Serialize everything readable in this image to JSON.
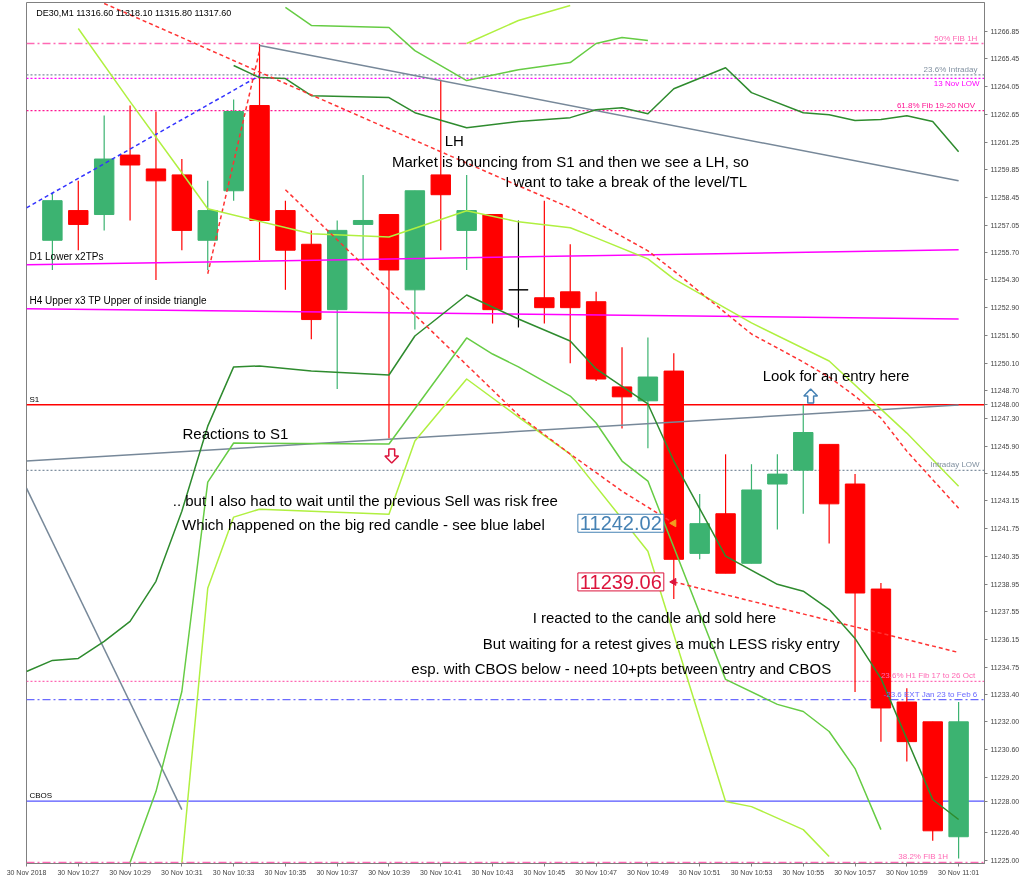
{
  "chart_data": {
    "type": "candlestick",
    "title": "DE30,M1  11316.60 11318.10 11315.80 11317.60",
    "x": [
      "2018-11-30T10:26",
      "2018-11-30T10:27",
      "2018-11-30T10:28",
      "2018-11-30T10:29",
      "2018-11-30T10:30",
      "2018-11-30T10:31",
      "2018-11-30T10:32",
      "2018-11-30T10:33",
      "2018-11-30T10:34",
      "2018-11-30T10:35",
      "2018-11-30T10:36",
      "2018-11-30T10:37",
      "2018-11-30T10:38",
      "2018-11-30T10:39",
      "2018-11-30T10:40",
      "2018-11-30T10:41",
      "2018-11-30T10:42",
      "2018-11-30T10:43",
      "2018-11-30T10:44",
      "2018-11-30T10:45",
      "2018-11-30T10:46",
      "2018-11-30T10:47",
      "2018-11-30T10:48",
      "2018-11-30T10:49",
      "2018-11-30T10:50",
      "2018-11-30T10:51",
      "2018-11-30T10:52",
      "2018-11-30T10:53",
      "2018-11-30T10:54",
      "2018-11-30T10:55",
      "2018-11-30T10:56",
      "2018-11-30T10:57",
      "2018-11-30T10:58",
      "2018-11-30T10:59",
      "2018-11-30T11:00",
      "2018-11-30T11:01"
    ],
    "ohlc": [
      [
        11256.3,
        11258.7,
        11254.8,
        11258.3
      ],
      [
        11257.8,
        11259.3,
        11255.8,
        11257.1
      ],
      [
        11257.6,
        11262.6,
        11256.8,
        11260.4
      ],
      [
        11260.6,
        11263.1,
        11257.3,
        11260.1
      ],
      [
        11259.9,
        11262.8,
        11254.3,
        11259.3
      ],
      [
        11259.6,
        11260.4,
        11255.8,
        11256.8
      ],
      [
        11256.3,
        11259.3,
        11254.8,
        11257.8
      ],
      [
        11258.8,
        11263.4,
        11258.3,
        11262.8
      ],
      [
        11263.1,
        11266.2,
        11255.3,
        11257.3
      ],
      [
        11257.8,
        11258.3,
        11253.8,
        11255.8
      ],
      [
        11256.1,
        11256.8,
        11251.3,
        11252.3
      ],
      [
        11252.8,
        11257.3,
        11248.8,
        11256.8
      ],
      [
        11257.1,
        11259.6,
        11255.3,
        11257.3
      ],
      [
        11257.6,
        11257.6,
        11246.3,
        11254.8
      ],
      [
        11253.8,
        11258.8,
        11251.8,
        11258.8
      ],
      [
        11259.6,
        11264.4,
        11255.8,
        11258.6
      ],
      [
        11256.8,
        11259.6,
        11254.8,
        11257.8
      ],
      [
        11257.6,
        11257.6,
        11252.1,
        11252.8
      ],
      [
        11253.8,
        11257.3,
        11251.9,
        11253.8
      ],
      [
        11253.4,
        11258.3,
        11252.1,
        11252.9
      ],
      [
        11253.7,
        11256.1,
        11250.1,
        11252.9
      ],
      [
        11253.2,
        11253.7,
        11249.2,
        11249.3
      ],
      [
        11248.9,
        11250.9,
        11246.8,
        11248.4
      ],
      [
        11248.2,
        11251.4,
        11245.8,
        11249.4
      ],
      [
        11249.7,
        11250.6,
        11238.2,
        11240.2
      ],
      [
        11240.5,
        11243.5,
        11240.2,
        11242.0
      ],
      [
        11242.5,
        11245.5,
        11239.5,
        11239.5
      ],
      [
        11240.0,
        11245.0,
        11240.0,
        11243.7
      ],
      [
        11244.0,
        11245.5,
        11241.7,
        11244.5
      ],
      [
        11244.7,
        11248.0,
        11242.5,
        11246.6
      ],
      [
        11246.0,
        11246.0,
        11241.0,
        11243.0
      ],
      [
        11244.0,
        11244.5,
        11233.5,
        11238.5
      ],
      [
        11238.7,
        11239.0,
        11231.0,
        11232.7
      ],
      [
        11233.0,
        11233.7,
        11230.0,
        11231.0
      ],
      [
        11232.0,
        11232.0,
        11226.0,
        11226.5
      ],
      [
        11226.2,
        11233.0,
        11225.1,
        11232.0
      ]
    ],
    "colors": [
      "#3cb371",
      "#ff0000",
      "#3cb371",
      "#ff0000",
      "#ff0000",
      "#ff0000",
      "#3cb371",
      "#3cb371",
      "#ff0000",
      "#ff0000",
      "#ff0000",
      "#3cb371",
      "#3cb371",
      "#ff0000",
      "#3cb371",
      "#ff0000",
      "#3cb371",
      "#ff0000",
      "#000000",
      "#ff0000",
      "#ff0000",
      "#ff0000",
      "#ff0000",
      "#3cb371",
      "#ff0000",
      "#3cb371",
      "#ff0000",
      "#3cb371",
      "#3cb371",
      "#3cb371",
      "#ff0000",
      "#ff0000",
      "#ff0000",
      "#ff0000",
      "#ff0000",
      "#3cb371"
    ],
    "xlim": [
      "2018-11-30T10:25",
      "2018-11-30T11:02"
    ],
    "ylim": [
      11224.85,
      11268.3
    ],
    "xticks": [
      {
        "value": "2018-11-30T10:25",
        "label": "30 Nov 2018"
      },
      {
        "value": "2018-11-30T10:27",
        "label": "30 Nov 10:27"
      },
      {
        "value": "2018-11-30T10:29",
        "label": "30 Nov 10:29"
      },
      {
        "value": "2018-11-30T10:31",
        "label": "30 Nov 10:31"
      },
      {
        "value": "2018-11-30T10:33",
        "label": "30 Nov 10:33"
      },
      {
        "value": "2018-11-30T10:35",
        "label": "30 Nov 10:35"
      },
      {
        "value": "2018-11-30T10:37",
        "label": "30 Nov 10:37"
      },
      {
        "value": "2018-11-30T10:39",
        "label": "30 Nov 10:39"
      },
      {
        "value": "2018-11-30T10:41",
        "label": "30 Nov 10:41"
      },
      {
        "value": "2018-11-30T10:43",
        "label": "30 Nov 10:43"
      },
      {
        "value": "2018-11-30T10:45",
        "label": "30 Nov 10:45"
      },
      {
        "value": "2018-11-30T10:47",
        "label": "30 Nov 10:47"
      },
      {
        "value": "2018-11-30T10:49",
        "label": "30 Nov 10:49"
      },
      {
        "value": "2018-11-30T10:51",
        "label": "30 Nov 10:51"
      },
      {
        "value": "2018-11-30T10:53",
        "label": "30 Nov 10:53"
      },
      {
        "value": "2018-11-30T10:55",
        "label": "30 Nov 10:55"
      },
      {
        "value": "2018-11-30T10:57",
        "label": "30 Nov 10:57"
      },
      {
        "value": "2018-11-30T10:59",
        "label": "30 Nov 10:59"
      },
      {
        "value": "2018-11-30T11:01",
        "label": "30 Nov 11:01"
      }
    ],
    "yticks": [
      {
        "value": 11266.85,
        "label": "11266.85"
      },
      {
        "value": 11265.45,
        "label": "11265.45"
      },
      {
        "value": 11264.05,
        "label": "11264.05"
      },
      {
        "value": 11262.65,
        "label": "11262.65"
      },
      {
        "value": 11261.25,
        "label": "11261.25"
      },
      {
        "value": 11259.85,
        "label": "11259.85"
      },
      {
        "value": 11258.45,
        "label": "11258.45"
      },
      {
        "value": 11257.05,
        "label": "11257.05"
      },
      {
        "value": 11255.7,
        "label": "11255.70"
      },
      {
        "value": 11254.3,
        "label": "11254.30"
      },
      {
        "value": 11252.9,
        "label": "11252.90"
      },
      {
        "value": 11251.5,
        "label": "11251.50"
      },
      {
        "value": 11250.1,
        "label": "11250.10"
      },
      {
        "value": 11248.7,
        "label": "11248.70"
      },
      {
        "value": 11248.0,
        "label": "11248.00"
      },
      {
        "value": 11247.3,
        "label": "11247.30"
      },
      {
        "value": 11245.9,
        "label": "11245.90"
      },
      {
        "value": 11244.55,
        "label": "11244.55"
      },
      {
        "value": 11243.15,
        "label": "11243.15"
      },
      {
        "value": 11241.75,
        "label": "11241.75"
      },
      {
        "value": 11240.35,
        "label": "11240.35"
      },
      {
        "value": 11238.95,
        "label": "11238.95"
      },
      {
        "value": 11237.55,
        "label": "11237.55"
      },
      {
        "value": 11236.15,
        "label": "11236.15"
      },
      {
        "value": 11234.75,
        "label": "11234.75"
      },
      {
        "value": 11233.4,
        "label": "11233.40"
      },
      {
        "value": 11232.0,
        "label": "11232.00"
      },
      {
        "value": 11230.6,
        "label": "11230.60"
      },
      {
        "value": 11229.2,
        "label": "11229.20"
      },
      {
        "value": 11228.0,
        "label": "11228.00"
      },
      {
        "value": 11226.4,
        "label": "11226.40"
      },
      {
        "value": 11225.0,
        "label": "11225.00"
      }
    ],
    "grid": false,
    "ref_lines": [
      {
        "axis": "y",
        "value": 11266.23,
        "label": "50%  FIB 1H",
        "color": "#ff69b4",
        "line_style": "dashdot"
      },
      {
        "axis": "y",
        "value": 11264.65,
        "label": "23.6%  Intraday",
        "color": "#8090a0",
        "line_style": "dotted"
      },
      {
        "axis": "y",
        "value": 11264.47,
        "label": "13 Nov LOW",
        "color": "#ff00ff",
        "line_style": "dotted"
      },
      {
        "axis": "y",
        "value": 11262.84,
        "label": "61.8%  Fib 19-20  NOV",
        "color": "#ff1493",
        "line_style": "dotted"
      },
      {
        "axis": "y",
        "value": 11248.0,
        "label": "S1",
        "color": "#ff0000",
        "line_style": "solid"
      },
      {
        "axis": "y",
        "value": 11244.69,
        "label": "Intraday LOW",
        "color": "#8090a0",
        "line_style": "dotted"
      },
      {
        "axis": "y",
        "value": 11234.04,
        "label": "23.6%   H1 Fib 17 to 26 Oct",
        "color": "#ff69b4",
        "line_style": "dotted"
      },
      {
        "axis": "y",
        "value": 11233.12,
        "label": "-23.6  EXT Jan 23 to Feb 6",
        "color": "#6a6aff",
        "line_style": "dashdot"
      },
      {
        "axis": "y",
        "value": 11228.0,
        "label": "CBOS",
        "color": "#5555ff",
        "line_style": "solid"
      },
      {
        "axis": "y",
        "value": 11224.91,
        "label": "38.2%  FIB 1H",
        "color": "#ff69b4",
        "line_style": "dashdot"
      }
    ],
    "series": [
      {
        "type": "line",
        "name": "D1 Lower x2TPs",
        "color": "#ff00ff",
        "line_style": "solid",
        "x": [
          "2018-11-30T10:25",
          "2018-11-30T11:01"
        ],
        "values": [
          11255.06,
          11255.82
        ]
      },
      {
        "type": "line",
        "name": "H4 Upper  x3 TP Upper of inside triangle",
        "color": "#ff00ff",
        "line_style": "solid",
        "x": [
          "2018-11-30T10:25",
          "2018-11-30T11:01"
        ],
        "values": [
          11252.84,
          11252.33
        ]
      },
      {
        "type": "line",
        "color": "#778899",
        "line_style": "solid",
        "x": [
          "2018-11-30T10:34",
          "2018-11-30T11:01"
        ],
        "values": [
          11266.13,
          11259.3
        ]
      },
      {
        "type": "line",
        "color": "#778899",
        "line_style": "solid",
        "x": [
          "2018-11-30T10:25",
          "2018-11-30T11:01"
        ],
        "values": [
          11245.16,
          11247.99
        ]
      },
      {
        "type": "line",
        "color": "#778899",
        "line_style": "solid",
        "x": [
          "2018-11-30T10:25",
          "2018-11-30T10:31"
        ],
        "values": [
          11243.79,
          11227.57
        ]
      },
      {
        "type": "line",
        "color": "#3333ff",
        "line_style": "dashed",
        "x": [
          "2018-11-30T10:25",
          "2018-11-30T10:34"
        ],
        "values": [
          11257.94,
          11264.61
        ]
      },
      {
        "type": "line",
        "color": "#ff3333",
        "line_style": "dashed",
        "x": [
          "2018-11-30T10:32",
          "2018-11-30T10:34"
        ],
        "values": [
          11254.61,
          11265.87
        ]
      },
      {
        "type": "line",
        "color": "#2e8b2e",
        "line_style": "solid",
        "x": [
          "2018-11-30T10:33",
          "2018-11-30T10:34",
          "2018-11-30T10:35",
          "2018-11-30T10:36",
          "2018-11-30T10:39",
          "2018-11-30T10:40",
          "2018-11-30T10:42",
          "2018-11-30T10:44",
          "2018-11-30T10:46",
          "2018-11-30T10:47",
          "2018-11-30T10:48",
          "2018-11-30T10:49",
          "2018-11-30T10:50",
          "2018-11-30T10:52",
          "2018-11-30T10:53",
          "2018-11-30T10:55",
          "2018-11-30T10:56",
          "2018-11-30T10:57",
          "2018-11-30T10:58",
          "2018-11-30T10:59",
          "2018-11-30T11:00",
          "2018-11-30T11:01"
        ],
        "values": [
          11265.12,
          11264.51,
          11264.46,
          11263.6,
          11263.5,
          11262.74,
          11261.98,
          11262.29,
          11262.49,
          11262.89,
          11262.99,
          11262.69,
          11263.95,
          11265.01,
          11263.75,
          11262.74,
          11262.64,
          11262.34,
          11262.39,
          11262.59,
          11262.29,
          11260.77
        ]
      },
      {
        "type": "line",
        "color": "#66cc44",
        "line_style": "solid",
        "x": [
          "2018-11-30T10:35",
          "2018-11-30T10:36",
          "2018-11-30T10:39",
          "2018-11-30T10:40",
          "2018-11-30T10:42",
          "2018-11-30T10:44",
          "2018-11-30T10:46",
          "2018-11-30T10:47",
          "2018-11-30T10:48",
          "2018-11-30T10:49"
        ],
        "values": [
          11268.05,
          11267.14,
          11267.04,
          11265.87,
          11264.36,
          11264.91,
          11265.27,
          11266.23,
          11266.53,
          11266.38
        ]
      },
      {
        "type": "line",
        "color": "#b0f040",
        "line_style": "solid",
        "x": [
          "2018-11-30T10:42",
          "2018-11-30T10:44",
          "2018-11-30T10:46"
        ],
        "values": [
          11266.23,
          11267.39,
          11268.15
        ]
      },
      {
        "type": "line",
        "color": "#b0f040",
        "line_style": "solid",
        "x": [
          "2018-11-30T10:27",
          "2018-11-30T10:29",
          "2018-11-30T10:31",
          "2018-11-30T10:32",
          "2018-11-30T10:36",
          "2018-11-30T10:39",
          "2018-11-30T10:42",
          "2018-11-30T10:44",
          "2018-11-30T10:46",
          "2018-11-30T10:47",
          "2018-11-30T10:49",
          "2018-11-30T10:50",
          "2018-11-30T10:53",
          "2018-11-30T10:56",
          "2018-11-30T10:58",
          "2018-11-30T10:59",
          "2018-11-30T11:01"
        ],
        "values": [
          11266.99,
          11263.3,
          11259.71,
          11257.89,
          11256.63,
          11256.47,
          11257.79,
          11257.23,
          11256.93,
          11256.42,
          11255.36,
          11254.35,
          11252.13,
          11250.21,
          11247.78,
          11246.57,
          11243.89
        ]
      },
      {
        "type": "line",
        "color": "#2e8b2e",
        "line_style": "solid",
        "x": [
          "2018-11-30T10:25",
          "2018-11-30T10:26",
          "2018-11-30T10:27",
          "2018-11-30T10:28",
          "2018-11-30T10:29",
          "2018-11-30T10:30",
          "2018-11-30T10:31",
          "2018-11-30T10:32",
          "2018-11-30T10:33",
          "2018-11-30T10:34",
          "2018-11-30T10:36",
          "2018-11-30T10:39",
          "2018-11-30T10:40",
          "2018-11-30T10:42",
          "2018-11-30T10:44",
          "2018-11-30T10:46",
          "2018-11-30T10:47",
          "2018-11-30T10:49",
          "2018-11-30T10:50",
          "2018-11-30T10:52",
          "2018-11-30T10:54",
          "2018-11-30T10:55",
          "2018-11-30T10:56",
          "2018-11-30T10:57",
          "2018-11-30T10:58",
          "2018-11-30T11:00",
          "2018-11-30T11:01"
        ],
        "values": [
          11234.54,
          11235.1,
          11235.2,
          11236.06,
          11237.07,
          11239.09,
          11242.63,
          11246.92,
          11249.91,
          11249.96,
          11249.7,
          11249.5,
          11251.47,
          11253.54,
          11252.33,
          11251.22,
          11249.81,
          11248.04,
          11245.16,
          11240.36,
          11238.94,
          11238.59,
          11237.68,
          11236.21,
          11234.19,
          11228.08,
          11227.07
        ]
      },
      {
        "type": "line",
        "color": "#66cc44",
        "line_style": "solid",
        "x": [
          "2018-11-30T10:29",
          "2018-11-30T10:30",
          "2018-11-30T10:31",
          "2018-11-30T10:32",
          "2018-11-30T10:33",
          "2018-11-30T10:39",
          "2018-11-30T10:42",
          "2018-11-30T10:43",
          "2018-11-30T10:44",
          "2018-11-30T10:46",
          "2018-11-30T10:47",
          "2018-11-30T10:48",
          "2018-11-30T10:49",
          "2018-11-30T10:52",
          "2018-11-30T10:54",
          "2018-11-30T10:55",
          "2018-11-30T10:56",
          "2018-11-30T10:57",
          "2018-11-30T10:58"
        ],
        "values": [
          11224.9,
          11228.48,
          11233.53,
          11244.1,
          11246.07,
          11246.02,
          11251.37,
          11250.56,
          11249.91,
          11248.44,
          11247.08,
          11245.16,
          11244.15,
          11234.14,
          11232.88,
          11232.52,
          11231.51,
          11229.64,
          11226.56
        ]
      },
      {
        "type": "line",
        "color": "#b0f040",
        "line_style": "solid",
        "x": [
          "2018-11-30T10:31",
          "2018-11-30T10:32",
          "2018-11-30T10:33",
          "2018-11-30T10:34",
          "2018-11-30T10:39",
          "2018-11-30T10:40",
          "2018-11-30T10:42",
          "2018-11-30T10:44",
          "2018-11-30T10:46",
          "2018-11-30T10:49",
          "2018-11-30T10:52",
          "2018-11-30T10:53",
          "2018-11-30T10:55",
          "2018-11-30T10:56"
        ],
        "values": [
          11224.9,
          11238.74,
          11242.33,
          11242.73,
          11242.48,
          11246.17,
          11249.3,
          11247.38,
          11245.51,
          11240.61,
          11227.98,
          11227.72,
          11226.56,
          11225.2
        ]
      },
      {
        "type": "line",
        "color": "#ff3333",
        "line_style": "dashed",
        "x": [
          "2018-11-30T10:28",
          "2018-11-30T10:31",
          "2018-11-30T10:35",
          "2018-11-30T10:38",
          "2018-11-30T10:41",
          "2018-11-30T10:44",
          "2018-11-30T10:46",
          "2018-11-30T10:49",
          "2018-11-30T10:50",
          "2018-11-30T10:53",
          "2018-11-30T10:55",
          "2018-11-30T10:56",
          "2018-11-30T10:57",
          "2018-11-30T10:58",
          "2018-11-30T10:59",
          "2018-11-30T11:01"
        ],
        "values": [
          11268.25,
          11266.53,
          11264.21,
          11262.49,
          11260.77,
          11259.05,
          11257.94,
          11255.77,
          11254.76,
          11251.57,
          11250.16,
          11249.4,
          11248.44,
          11247.33,
          11245.66,
          11242.78
        ]
      },
      {
        "type": "line",
        "color": "#ff3333",
        "line_style": "dashed",
        "x": [
          "2018-11-30T10:35",
          "2018-11-30T10:38",
          "2018-11-30T10:41",
          "2018-11-30T10:44",
          "2018-11-30T10:46",
          "2018-11-30T10:48",
          "2018-11-30T10:50"
        ],
        "values": [
          11258.85,
          11255.06,
          11251.27,
          11247.48,
          11245.51,
          11243.64,
          11242.02
        ]
      },
      {
        "type": "line",
        "color": "#ff3333",
        "line_style": "dashed",
        "x": [
          "2018-11-30T10:50",
          "2018-11-30T11:01"
        ],
        "values": [
          11239.06,
          11235.5
        ]
      }
    ],
    "annotations": [
      "LH",
      "Market is bouncing from S1 and then we see a LH, so",
      "I want to take a break of the level/TL",
      "Look for an entry here",
      "Reactions to S1",
      ".. but I also had to wait until the previous Sell was risk free",
      "Which happened on the big red candle - see blue label",
      {
        "text": "11242.02",
        "x": "2018-11-30T10:50",
        "y": 11242.02
      },
      {
        "text": "11239.06",
        "x": "2018-11-30T10:50",
        "y": 11239.06
      },
      "I reacted to the candle and sold here",
      "But waiting for a retest gives a much LESS risky entry",
      "esp. with CBOS below - need 10+pts between entry and CBOS"
    ]
  }
}
